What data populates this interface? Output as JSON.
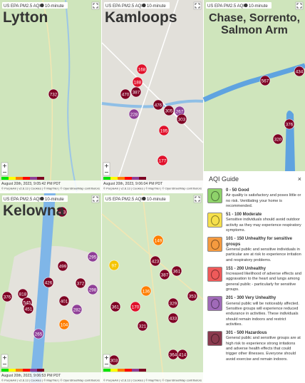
{
  "panels": [
    {
      "title": "Lytton",
      "header": "US EPA PM2.5 AQI",
      "interval": "10-minute",
      "timestamp": "August 20th, 2023, 9:05:42 PM PDT",
      "attribution": "© PurpleAir | v2.8.13 | Cookies | © MapTiler | © OpenStreetMap contributors",
      "markers": [
        732
      ]
    },
    {
      "title": "Kamloops",
      "header": "US EPA PM2.5 AQI",
      "interval": "10-minute",
      "timestamp": "August 20th, 2023, 9:06:04 PM PDT",
      "attribution": "© PurpleAir | v2.8.13 | Cookies | © MapTiler | © OpenStreetMap contributors",
      "markers": [
        168,
        188,
        387,
        470,
        228,
        476,
        305,
        267,
        303,
        195,
        177
      ]
    },
    {
      "title": "Chase, Sorrento, Salmon Arm",
      "header": "US EPA PM2.5 AQI",
      "interval": "10-minute",
      "markers": [
        567,
        434,
        376,
        320
      ]
    },
    {
      "title": "Kelowna",
      "header": "US EPA PM2.5 AQI",
      "interval": "10-minute",
      "timestamp": "August 20th, 2023, 9:06:53 PM PDT",
      "attribution": "© PurpleAir | v2.8.13 | Cookies | © MapTiler | © OpenStreetMap contributors",
      "markers": [
        413,
        499,
        295,
        426,
        372,
        298,
        818,
        545,
        451,
        401,
        282,
        265,
        104,
        376
      ]
    },
    {
      "header": "US EPA PM2.5 AQI",
      "interval": "10-minute",
      "attribution": "© PurpleAir | v2.8.13 | Cookies | © MapTiler | © OpenStreetMap contributors",
      "markers": [
        97,
        149,
        423,
        387,
        361,
        136,
        170,
        361,
        321,
        329,
        433,
        353,
        364,
        414,
        303
      ]
    }
  ],
  "aqi_guide": {
    "title": "AQI Guide",
    "close": "×",
    "levels": [
      {
        "range": "0 - 50",
        "name": "Good",
        "description": "Air quality is satisfactory and poses little or no risk. Ventilating your home is recommended."
      },
      {
        "range": "51 - 100",
        "name": "Moderate",
        "description": "Sensitive individuals should avoid outdoor activity as they may experience respiratory symptoms."
      },
      {
        "range": "101 - 150",
        "name": "Unhealthy for sensitive groups",
        "description": "General public and sensitive individuals in particular are at risk to experience irritation and respiratory problems."
      },
      {
        "range": "151 - 200",
        "name": "Unhealthy",
        "description": "Increased likelihood of adverse effects and aggravation to the heart and lungs among general public - particularly for sensitive groups."
      },
      {
        "range": "201 - 300",
        "name": "Very Unhealthy",
        "description": "General public will be noticeably affected. Sensitive groups will experience reduced endurance in activities. These individuals should remain indoors and restrict activities."
      },
      {
        "range": "301 - 500",
        "name": "Hazardous",
        "description": "General public and sensitive groups are at high risk to experience strong irritations and adverse health effects that could trigger other illnesses. Everyone should avoid exercise and remain indoors."
      }
    ]
  }
}
